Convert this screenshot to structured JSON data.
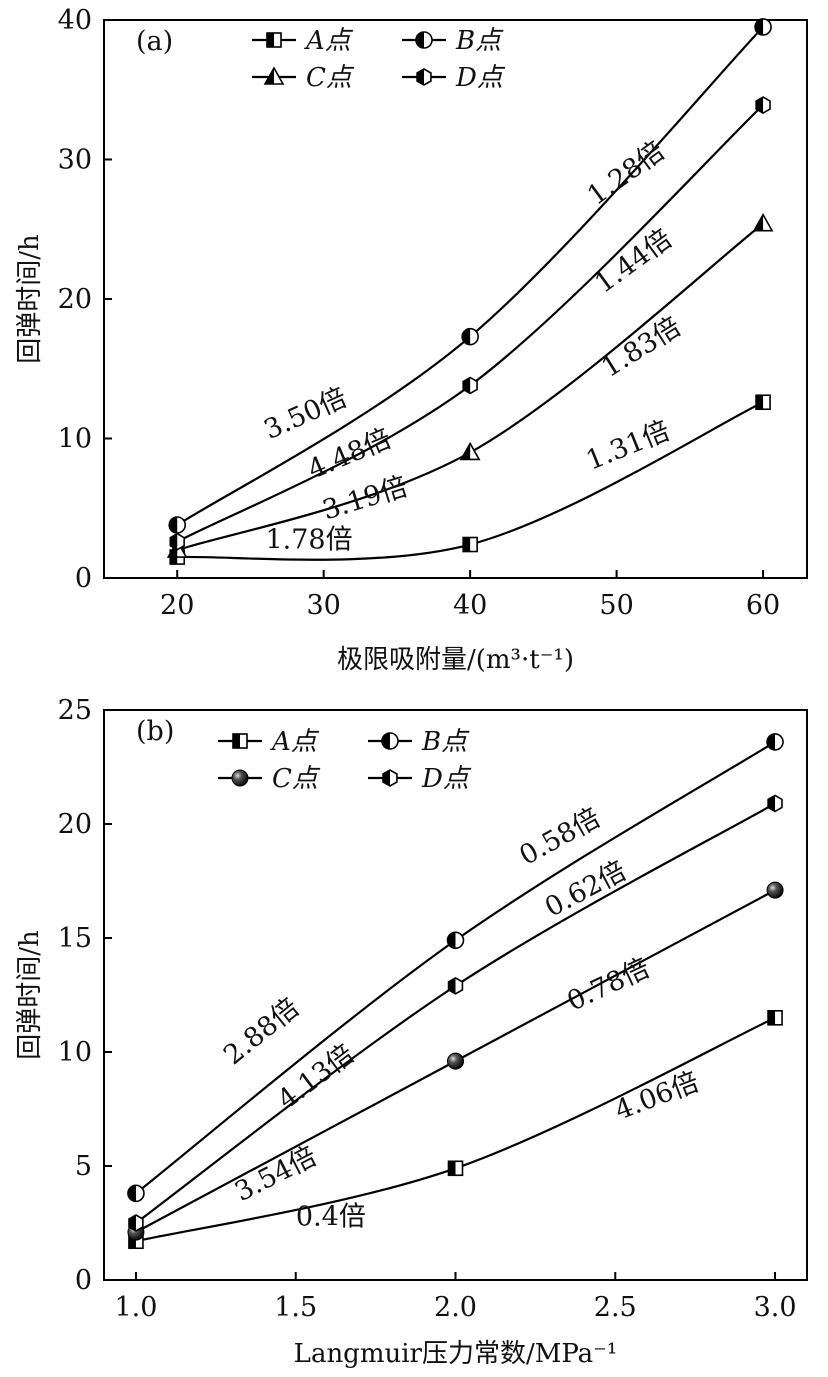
{
  "chart_data": [
    {
      "type": "line",
      "panel_label": "(a)",
      "xlabel": "极限吸附量/(m³·t⁻¹)",
      "ylabel": "回弹时间/h",
      "xlim": [
        15,
        63
      ],
      "ylim": [
        0,
        40
      ],
      "xticks": [
        20,
        30,
        40,
        50,
        60
      ],
      "yticks": [
        0,
        10,
        20,
        30,
        40
      ],
      "x": [
        20,
        40,
        60
      ],
      "series": [
        {
          "name": "A点",
          "marker": "square-half",
          "values": [
            1.5,
            2.4,
            12.6
          ]
        },
        {
          "name": "B点",
          "marker": "circle-half",
          "values": [
            3.8,
            17.3,
            39.5
          ]
        },
        {
          "name": "C点",
          "marker": "triangle-half",
          "values": [
            2.0,
            9.0,
            25.4
          ]
        },
        {
          "name": "D点",
          "marker": "hexagon-half",
          "values": [
            2.6,
            13.8,
            33.9
          ]
        }
      ],
      "annotations": [
        {
          "text": "3.50倍",
          "x": 29,
          "y": 11.2,
          "angle": -24
        },
        {
          "text": "1.28倍",
          "x": 51,
          "y": 28.5,
          "angle": -36
        },
        {
          "text": "4.48倍",
          "x": 32,
          "y": 8.3,
          "angle": -23
        },
        {
          "text": "1.44倍",
          "x": 51.5,
          "y": 22.2,
          "angle": -36
        },
        {
          "text": "3.19倍",
          "x": 33,
          "y": 5.1,
          "angle": -17
        },
        {
          "text": "1.83倍",
          "x": 52,
          "y": 16.0,
          "angle": -32
        },
        {
          "text": "1.78倍",
          "x": 29,
          "y": 2.1,
          "angle": 0
        },
        {
          "text": "1.31倍",
          "x": 51,
          "y": 8.9,
          "angle": -22
        }
      ],
      "legend": {
        "placement": "top-left",
        "columns": 2
      }
    },
    {
      "type": "line",
      "panel_label": "(b)",
      "xlabel": "Langmuir压力常数/MPa⁻¹",
      "ylabel": "回弹时间/h",
      "xlim": [
        0.9,
        3.1
      ],
      "ylim": [
        0,
        25
      ],
      "xticks": [
        1.0,
        1.5,
        2.0,
        2.5,
        3.0
      ],
      "yticks": [
        0,
        5,
        10,
        15,
        20,
        25
      ],
      "x": [
        1.0,
        2.0,
        3.0
      ],
      "series": [
        {
          "name": "A点",
          "marker": "square-half",
          "values": [
            1.7,
            4.9,
            11.5
          ]
        },
        {
          "name": "B点",
          "marker": "circle-half",
          "values": [
            3.8,
            14.9,
            23.6
          ]
        },
        {
          "name": "C点",
          "marker": "sphere",
          "values": [
            2.1,
            9.6,
            17.1
          ]
        },
        {
          "name": "D点",
          "marker": "hexagon-half",
          "values": [
            2.5,
            12.9,
            20.9
          ]
        }
      ],
      "annotations": [
        {
          "text": "2.88倍",
          "x": 1.41,
          "y": 10.6,
          "angle": -39
        },
        {
          "text": "0.58倍",
          "x": 2.34,
          "y": 19.1,
          "angle": -29
        },
        {
          "text": "4.13倍",
          "x": 1.58,
          "y": 8.6,
          "angle": -37
        },
        {
          "text": "0.62倍",
          "x": 2.42,
          "y": 16.8,
          "angle": -28
        },
        {
          "text": "3.54倍",
          "x": 1.45,
          "y": 4.3,
          "angle": -27
        },
        {
          "text": "0.78倍",
          "x": 2.49,
          "y": 12.6,
          "angle": -25
        },
        {
          "text": "0.4倍",
          "x": 1.61,
          "y": 2.4,
          "angle": 0
        },
        {
          "text": "4.06倍",
          "x": 2.64,
          "y": 7.7,
          "angle": -21
        }
      ],
      "legend": {
        "placement": "top-left",
        "columns": 2
      }
    }
  ]
}
